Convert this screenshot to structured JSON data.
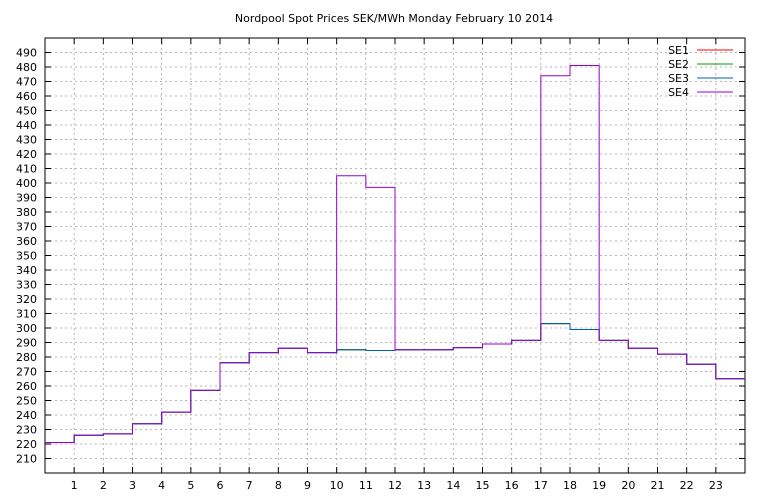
{
  "chart_data": {
    "type": "line",
    "title": "Nordpool Spot Prices SEK/MWh Monday February 10 2014",
    "xlabel": "",
    "ylabel": "",
    "xlim": [
      0,
      24
    ],
    "ylim": [
      200,
      500
    ],
    "x_ticks": [
      1,
      2,
      3,
      4,
      5,
      6,
      7,
      8,
      9,
      10,
      11,
      12,
      13,
      14,
      15,
      16,
      17,
      18,
      19,
      20,
      21,
      22,
      23
    ],
    "y_ticks": [
      210,
      220,
      230,
      240,
      250,
      260,
      270,
      280,
      290,
      300,
      310,
      320,
      330,
      340,
      350,
      360,
      370,
      380,
      390,
      400,
      410,
      420,
      430,
      440,
      450,
      460,
      470,
      480,
      490
    ],
    "grid": true,
    "legend_position": "top-right",
    "step": true,
    "hours": [
      0,
      1,
      2,
      3,
      4,
      5,
      6,
      7,
      8,
      9,
      10,
      11,
      12,
      13,
      14,
      15,
      16,
      17,
      18,
      19,
      20,
      21,
      22,
      23
    ],
    "series": [
      {
        "name": "SE1",
        "color": "#ff0000",
        "values": [
          221,
          226,
          227,
          234,
          242,
          257,
          276,
          283,
          286,
          283,
          285,
          284.5,
          285,
          285,
          286.5,
          289,
          291.5,
          303,
          299,
          291.5,
          286,
          282,
          275,
          265
        ]
      },
      {
        "name": "SE2",
        "color": "#00a000",
        "values": [
          221,
          226,
          227,
          234,
          242,
          257,
          276,
          283,
          286,
          283,
          285,
          284.5,
          285,
          285,
          286.5,
          289,
          291.5,
          303,
          299,
          291.5,
          286,
          282,
          275,
          265
        ]
      },
      {
        "name": "SE3",
        "color": "#0060ad",
        "values": [
          221,
          226,
          227,
          234,
          242,
          257,
          276,
          283,
          286,
          283,
          285,
          284.5,
          285,
          285,
          286.5,
          289,
          291.5,
          303,
          299,
          291.5,
          286,
          282,
          275,
          265
        ]
      },
      {
        "name": "SE4",
        "color": "#9400d3",
        "values": [
          221,
          226,
          227,
          234,
          242,
          257,
          276,
          283,
          286,
          283,
          405,
          397,
          285,
          285,
          286.5,
          289,
          291.5,
          474,
          481,
          291.5,
          286,
          282,
          275,
          265
        ]
      }
    ]
  }
}
